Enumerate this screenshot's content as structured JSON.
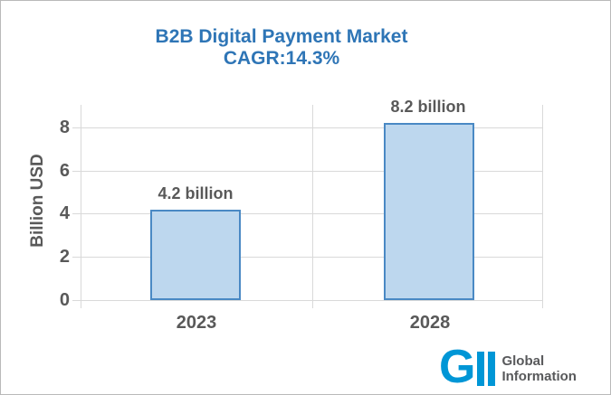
{
  "chart_data": {
    "type": "bar",
    "title": "B2B Digital Payment Market",
    "subtitle": "CAGR:14.3%",
    "cagr_percent": 14.3,
    "categories": [
      "2023",
      "2028"
    ],
    "values": [
      4.2,
      8.2
    ],
    "bar_labels": [
      "4.2 billion",
      "8.2 billion"
    ],
    "ylabel": "Billion USD",
    "xlabel": "",
    "yticks": [
      0,
      2,
      4,
      6,
      8
    ],
    "ytick_labels_top_to_bottom": [
      "8",
      "6",
      "4",
      "2",
      "0"
    ],
    "ylim": [
      0,
      9
    ],
    "grid": true,
    "legend": false,
    "colors": {
      "title": "#2E75B6",
      "bar_fill": "#BDD7EE",
      "bar_border": "#4A89C4",
      "gridline": "#D9D9D9",
      "axis_text": "#595959"
    }
  },
  "logo": {
    "monogram": "G",
    "name_line1": "Global",
    "name_line2": "Information",
    "blue": "#0096D6",
    "gray": "#58595B"
  }
}
